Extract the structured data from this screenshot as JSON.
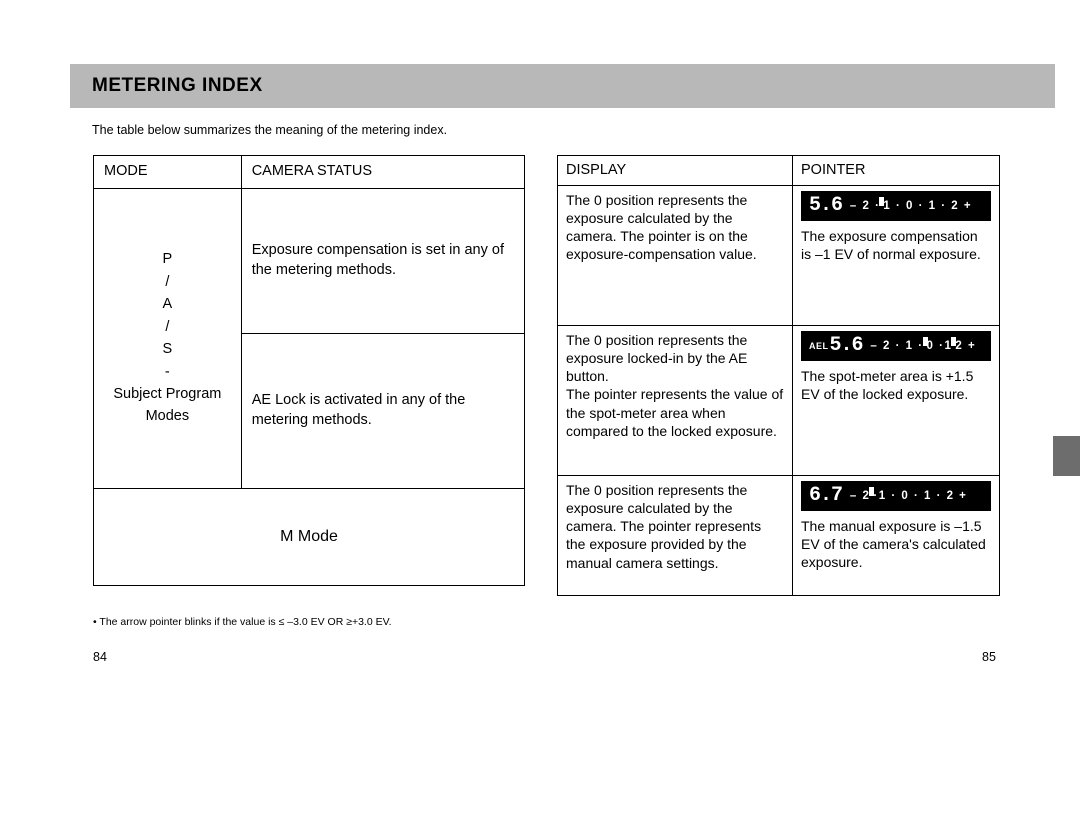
{
  "header": {
    "title": "METERING INDEX"
  },
  "intro": "The table below summarizes the meaning of the metering index.",
  "left_table": {
    "headers": {
      "mode": "MODE",
      "status": "CAMERA STATUS"
    },
    "mode_pas": "P\n/\nA\n/\nS\n-\nSubject Program\nModes",
    "status_r1": "Exposure compensation is set in any of the metering methods.",
    "status_r2": "AE Lock is activated in any of the metering methods.",
    "m_mode": "M Mode"
  },
  "footnote": "• The arrow pointer blinks if the value is ≤ –3.0 EV OR ≥+3.0 EV.",
  "page_left": "84",
  "right_table": {
    "headers": {
      "display": "DISPLAY",
      "pointer": "POINTER"
    },
    "r1": {
      "display": "The 0 position represents the exposure calculated by the camera. The pointer is on the exposure-compensation value.",
      "lcd": {
        "ael": "",
        "aperture": "5.6",
        "scale_left": "– 2 ·",
        "scale_right": "· 0 · 1 · 2 +",
        "marker_after": "1"
      },
      "pointer": "The exposure compensation is –1 EV of normal exposure."
    },
    "r2": {
      "display": "The 0 position represents the exposure locked-in by the AE button.\nThe pointer represents the value of the spot-meter area when compared to the locked exposure.",
      "lcd": {
        "ael": "AEL",
        "aperture": "5.6",
        "scale_left": "– 2 · 1 ·",
        "scale_mid": "0",
        "scale_right": "·",
        "marker_after": "1",
        "scale_right2": "2 +"
      },
      "pointer": "The spot-meter area is +1.5 EV of the locked exposure."
    },
    "r3": {
      "display": "The 0 position represents the exposure calculated by the camera. The pointer represents the exposure provided by the manual camera settings.",
      "lcd": {
        "ael": "",
        "aperture": "6.7",
        "scale_left": "– 2",
        "scale_right": "1 · 0 · 1 · 2 +",
        "marker_before": "·"
      },
      "pointer": "The manual exposure is –1.5 EV of the camera's calculated exposure."
    }
  },
  "page_right": "85",
  "colors": {
    "header_bg": "#b8b8b8",
    "lcd_bg": "#000000",
    "lcd_fg": "#ffffff",
    "border": "#000000",
    "side_tab": "#6d6d6d"
  }
}
